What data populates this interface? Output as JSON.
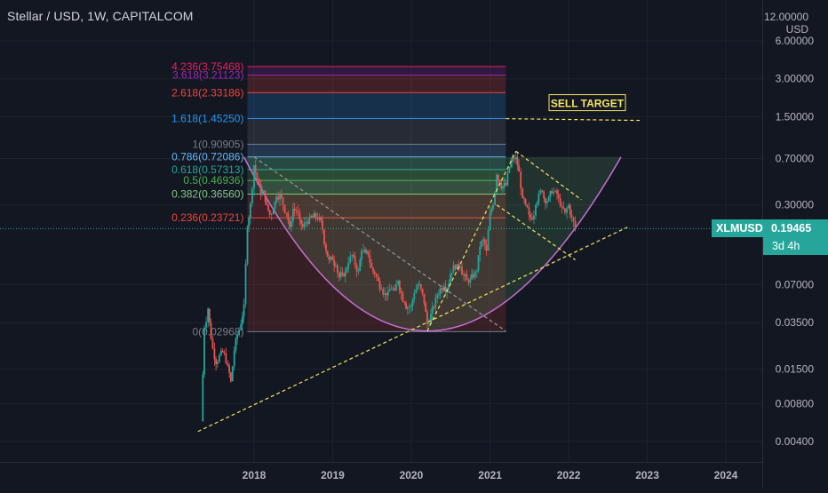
{
  "header": {
    "title": "Stellar / USD, 1W, CAPITALCOM"
  },
  "price_axis": {
    "unit": "USD",
    "top_label": "12.00000"
  },
  "last_price": {
    "symbol": "XLMUSD",
    "value": "0.19465",
    "countdown": "3d 4h"
  },
  "annotation": {
    "sell_target": "SELL TARGET"
  },
  "colors": {
    "background": "#131722",
    "up_candle": "#26a69a",
    "down_candle": "#ef5350",
    "fib_line": "#9598a1",
    "trend_yellow": "#f5e663",
    "cup": "#c86fd4",
    "price_tag": "#26a69a"
  },
  "chart_data": {
    "type": "candlestick",
    "title": "Stellar / USD, 1W, CAPITALCOM",
    "x_axis": {
      "type": "time",
      "ticks": [
        "2018",
        "2019",
        "2020",
        "2021",
        "2022",
        "2023",
        "2024"
      ]
    },
    "y_axis": {
      "scale": "log",
      "range": [
        0.0032,
        13.5
      ],
      "ticks": [
        "12.00000",
        "6.00000",
        "3.00000",
        "1.50000",
        "0.70000",
        "0.30000",
        "0.07000",
        "0.03500",
        "0.01500",
        "0.00800",
        "0.00400"
      ]
    },
    "grid": true,
    "last_price": 0.19465,
    "series_points": [
      {
        "date": "2017-05-01",
        "price": 0.0058
      },
      {
        "date": "2017-05-15",
        "price": 0.032
      },
      {
        "date": "2017-06-01",
        "price": 0.045
      },
      {
        "date": "2017-06-15",
        "price": 0.026
      },
      {
        "date": "2017-07-01",
        "price": 0.018
      },
      {
        "date": "2017-07-15",
        "price": 0.017
      },
      {
        "date": "2017-08-01",
        "price": 0.021
      },
      {
        "date": "2017-08-15",
        "price": 0.02
      },
      {
        "date": "2017-09-01",
        "price": 0.016
      },
      {
        "date": "2017-09-15",
        "price": 0.012
      },
      {
        "date": "2017-10-01",
        "price": 0.021
      },
      {
        "date": "2017-10-15",
        "price": 0.028
      },
      {
        "date": "2017-11-01",
        "price": 0.034
      },
      {
        "date": "2017-11-15",
        "price": 0.049
      },
      {
        "date": "2017-12-01",
        "price": 0.2
      },
      {
        "date": "2017-12-15",
        "price": 0.31
      },
      {
        "date": "2018-01-01",
        "price": 0.62
      },
      {
        "date": "2018-01-15",
        "price": 0.48
      },
      {
        "date": "2018-02-01",
        "price": 0.36
      },
      {
        "date": "2018-02-15",
        "price": 0.39
      },
      {
        "date": "2018-03-01",
        "price": 0.3
      },
      {
        "date": "2018-03-15",
        "price": 0.25
      },
      {
        "date": "2018-04-01",
        "price": 0.28
      },
      {
        "date": "2018-04-15",
        "price": 0.35
      },
      {
        "date": "2018-05-01",
        "price": 0.37
      },
      {
        "date": "2018-05-15",
        "price": 0.3
      },
      {
        "date": "2018-06-01",
        "price": 0.26
      },
      {
        "date": "2018-06-15",
        "price": 0.2
      },
      {
        "date": "2018-07-01",
        "price": 0.28
      },
      {
        "date": "2018-07-15",
        "price": 0.27
      },
      {
        "date": "2018-08-01",
        "price": 0.23
      },
      {
        "date": "2018-08-15",
        "price": 0.2
      },
      {
        "date": "2018-09-01",
        "price": 0.22
      },
      {
        "date": "2018-09-15",
        "price": 0.24
      },
      {
        "date": "2018-10-01",
        "price": 0.24
      },
      {
        "date": "2018-10-15",
        "price": 0.24
      },
      {
        "date": "2018-11-01",
        "price": 0.24
      },
      {
        "date": "2018-11-15",
        "price": 0.19
      },
      {
        "date": "2018-12-01",
        "price": 0.13
      },
      {
        "date": "2018-12-15",
        "price": 0.11
      },
      {
        "date": "2019-01-01",
        "price": 0.11
      },
      {
        "date": "2019-01-15",
        "price": 0.1
      },
      {
        "date": "2019-02-01",
        "price": 0.08
      },
      {
        "date": "2019-02-15",
        "price": 0.085
      },
      {
        "date": "2019-03-01",
        "price": 0.09
      },
      {
        "date": "2019-03-15",
        "price": 0.105
      },
      {
        "date": "2019-04-01",
        "price": 0.12
      },
      {
        "date": "2019-04-15",
        "price": 0.1
      },
      {
        "date": "2019-05-01",
        "price": 0.09
      },
      {
        "date": "2019-05-15",
        "price": 0.13
      },
      {
        "date": "2019-06-01",
        "price": 0.125
      },
      {
        "date": "2019-06-15",
        "price": 0.12
      },
      {
        "date": "2019-07-01",
        "price": 0.095
      },
      {
        "date": "2019-07-15",
        "price": 0.085
      },
      {
        "date": "2019-08-01",
        "price": 0.075
      },
      {
        "date": "2019-08-15",
        "price": 0.065
      },
      {
        "date": "2019-09-01",
        "price": 0.06
      },
      {
        "date": "2019-09-15",
        "price": 0.062
      },
      {
        "date": "2019-10-01",
        "price": 0.065
      },
      {
        "date": "2019-10-15",
        "price": 0.063
      },
      {
        "date": "2019-11-01",
        "price": 0.075
      },
      {
        "date": "2019-11-15",
        "price": 0.06
      },
      {
        "date": "2019-12-01",
        "price": 0.05
      },
      {
        "date": "2019-12-15",
        "price": 0.046
      },
      {
        "date": "2020-01-01",
        "price": 0.048
      },
      {
        "date": "2020-01-15",
        "price": 0.06
      },
      {
        "date": "2020-02-01",
        "price": 0.07
      },
      {
        "date": "2020-02-15",
        "price": 0.065
      },
      {
        "date": "2020-03-01",
        "price": 0.05
      },
      {
        "date": "2020-03-15",
        "price": 0.034
      },
      {
        "date": "2020-04-01",
        "price": 0.041
      },
      {
        "date": "2020-04-15",
        "price": 0.046
      },
      {
        "date": "2020-05-01",
        "price": 0.058
      },
      {
        "date": "2020-05-15",
        "price": 0.066
      },
      {
        "date": "2020-06-01",
        "price": 0.068
      },
      {
        "date": "2020-06-15",
        "price": 0.065
      },
      {
        "date": "2020-07-01",
        "price": 0.085
      },
      {
        "date": "2020-07-15",
        "price": 0.1
      },
      {
        "date": "2020-08-01",
        "price": 0.102
      },
      {
        "date": "2020-08-15",
        "price": 0.098
      },
      {
        "date": "2020-09-01",
        "price": 0.082
      },
      {
        "date": "2020-09-15",
        "price": 0.076
      },
      {
        "date": "2020-10-01",
        "price": 0.078
      },
      {
        "date": "2020-10-15",
        "price": 0.08
      },
      {
        "date": "2020-11-01",
        "price": 0.09
      },
      {
        "date": "2020-11-15",
        "price": 0.14
      },
      {
        "date": "2020-12-01",
        "price": 0.16
      },
      {
        "date": "2020-12-15",
        "price": 0.13
      },
      {
        "date": "2021-01-01",
        "price": 0.26
      },
      {
        "date": "2021-01-15",
        "price": 0.3
      },
      {
        "date": "2021-02-01",
        "price": 0.52
      },
      {
        "date": "2021-02-15",
        "price": 0.45
      },
      {
        "date": "2021-03-01",
        "price": 0.42
      },
      {
        "date": "2021-03-15",
        "price": 0.43
      },
      {
        "date": "2021-04-01",
        "price": 0.6
      },
      {
        "date": "2021-04-15",
        "price": 0.7
      },
      {
        "date": "2021-05-01",
        "price": 0.72
      },
      {
        "date": "2021-05-15",
        "price": 0.55
      },
      {
        "date": "2021-06-01",
        "price": 0.34
      },
      {
        "date": "2021-06-15",
        "price": 0.3
      },
      {
        "date": "2021-07-01",
        "price": 0.25
      },
      {
        "date": "2021-07-15",
        "price": 0.23
      },
      {
        "date": "2021-08-01",
        "price": 0.3
      },
      {
        "date": "2021-08-15",
        "price": 0.37
      },
      {
        "date": "2021-09-01",
        "price": 0.38
      },
      {
        "date": "2021-09-15",
        "price": 0.31
      },
      {
        "date": "2021-10-01",
        "price": 0.35
      },
      {
        "date": "2021-10-15",
        "price": 0.37
      },
      {
        "date": "2021-11-01",
        "price": 0.39
      },
      {
        "date": "2021-11-15",
        "price": 0.34
      },
      {
        "date": "2021-12-01",
        "price": 0.29
      },
      {
        "date": "2021-12-15",
        "price": 0.26
      },
      {
        "date": "2022-01-01",
        "price": 0.3
      },
      {
        "date": "2022-01-15",
        "price": 0.24
      },
      {
        "date": "2022-02-01",
        "price": 0.19465
      }
    ],
    "fib_retracement": {
      "start_date": "2017-12-01",
      "end_date": "2021-03-15",
      "levels": [
        {
          "label": "4.236(3.75468)",
          "price": 3.75468,
          "color": "#e91e63",
          "fill": "#e91e63"
        },
        {
          "label": "3.618(3.21123)",
          "price": 3.21123,
          "color": "#9c27b0",
          "fill": "#9c27b0"
        },
        {
          "label": "2.618(2.33186)",
          "price": 2.33186,
          "color": "#f44336",
          "fill": "#f44336"
        },
        {
          "label": "1.618(1.45250)",
          "price": 1.4525,
          "color": "#2196f3",
          "fill": "#2196f3"
        },
        {
          "label": "1(0.90905)",
          "price": 0.90905,
          "color": "#787b86",
          "fill": "#787b86"
        },
        {
          "label": "0.786(0.72086)",
          "price": 0.72086,
          "color": "#64b5f6",
          "fill": "#64b5f6"
        },
        {
          "label": "0.618(0.57313)",
          "price": 0.57313,
          "color": "#26a69a",
          "fill": "#26a69a"
        },
        {
          "label": "0.5(0.46936)",
          "price": 0.46936,
          "color": "#4caf50",
          "fill": "#4caf50"
        },
        {
          "label": "0.382(0.36560)",
          "price": 0.3656,
          "color": "#81c784",
          "fill": "#81c784"
        },
        {
          "label": "0.236(0.23721)",
          "price": 0.23721,
          "color": "#f44336",
          "fill": "#f44336"
        },
        {
          "label": "0(0.02968)",
          "price": 0.02968,
          "color": "#787b86",
          "fill": "#f44336"
        }
      ]
    },
    "sell_target": {
      "label": "SELL TARGET",
      "price": 1.45
    },
    "trend_lines": [
      {
        "style": "dashed",
        "color": "#f5e663",
        "from": {
          "date": "2017-04-15",
          "price": 0.0048
        },
        "to": {
          "date": "2022-10-01",
          "price": 0.2
        }
      },
      {
        "style": "dashed",
        "color": "#f5e663",
        "from": {
          "date": "2020-03-15",
          "price": 0.03
        },
        "to": {
          "date": "2021-05-01",
          "price": 0.8
        }
      },
      {
        "style": "dashed",
        "color": "#f5e663",
        "from": {
          "date": "2021-05-01",
          "price": 0.8
        },
        "to": {
          "date": "2022-03-01",
          "price": 0.33
        }
      },
      {
        "style": "dashed",
        "color": "#f5e663",
        "from": {
          "date": "2021-02-01",
          "price": 0.3
        },
        "to": {
          "date": "2022-02-01",
          "price": 0.11
        }
      },
      {
        "style": "dashed",
        "color": "#9598a1",
        "from": {
          "date": "2018-01-01",
          "price": 0.72
        },
        "to": {
          "date": "2021-03-15",
          "price": 0.03
        }
      }
    ],
    "cup_pattern": {
      "color": "#c86fd4",
      "left": {
        "date": "2017-11-15",
        "price": 0.72
      },
      "bottom": {
        "date": "2020-03-15",
        "price": 0.03
      },
      "right": {
        "date": "2022-09-01",
        "price": 0.72
      }
    }
  }
}
